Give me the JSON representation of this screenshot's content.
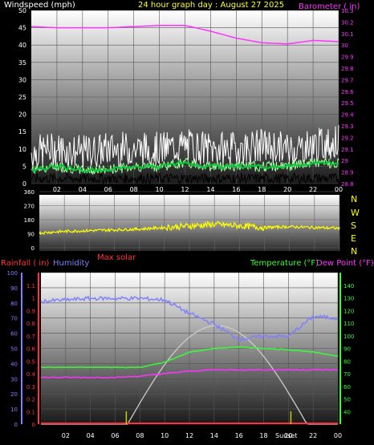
{
  "colors": {
    "bg": "#000000",
    "wind_label": "#ffffff",
    "title": "#ffff33",
    "barometer": "#ff33ff",
    "wind_avg": "#00cc33",
    "wind_gust": "#ffffff",
    "wind_dir": "#ffff00",
    "rain": "#ff3333",
    "humidity": "#8080ff",
    "temperature": "#33ff33",
    "dewpoint": "#ff33ff",
    "solar": "#cccccc",
    "sun_mark": "#cccc00"
  },
  "header": {
    "windspeed_label": "Windspeed (mph)",
    "title": "24 hour graph day : August 27 2025",
    "barometer_label": "Barometer ( in)"
  },
  "x_ticks": [
    "02",
    "04",
    "06",
    "08",
    "10",
    "12",
    "14",
    "16",
    "18",
    "20",
    "22",
    "00"
  ],
  "wind_dir_letters": [
    "N",
    "W",
    "S",
    "E",
    "N"
  ],
  "bottom_labels": {
    "rainfall": "Rainfall ( in)",
    "humidity": "Humidity",
    "max_solar": "Max solar",
    "temperature": "Temperature (°F)",
    "dewpoint": "Dew Point (°F)",
    "sunset": "Sunset"
  },
  "chart_data": [
    {
      "type": "line",
      "title": "24 hour graph day : August 27 2025",
      "x_hours": [
        0,
        2,
        4,
        6,
        8,
        10,
        12,
        14,
        16,
        18,
        20,
        22,
        24
      ],
      "left_axis": {
        "label": "Windspeed (mph)",
        "ylim": [
          0,
          50
        ],
        "ticks": [
          0,
          5,
          10,
          15,
          20,
          25,
          30,
          35,
          40,
          45,
          50
        ]
      },
      "right_axis": {
        "label": "Barometer ( in)",
        "ylim": [
          28.8,
          30.3
        ],
        "ticks": [
          "28.8",
          "28.9",
          "29",
          "29.1",
          "29.2",
          "29.3",
          "29.4",
          "29.5",
          "29.6",
          "29.7",
          "29.8",
          "29.9",
          "30",
          "30.1",
          "30.2",
          "30.3"
        ]
      },
      "series": [
        {
          "name": "Barometer",
          "axis": "right",
          "values": [
            30.16,
            30.15,
            30.15,
            30.15,
            30.16,
            30.17,
            30.17,
            30.12,
            30.06,
            30.02,
            30.01,
            30.04,
            30.03
          ]
        },
        {
          "name": "Wind gust",
          "axis": "left",
          "values": [
            9,
            10,
            9,
            10,
            10,
            10,
            11,
            10,
            10,
            11,
            10,
            11,
            12
          ]
        },
        {
          "name": "Wind average",
          "axis": "left",
          "values": [
            4,
            5,
            4,
            4,
            5,
            5,
            6,
            5,
            5,
            5,
            5,
            6,
            6
          ]
        }
      ],
      "grid": true
    },
    {
      "type": "scatter",
      "left_axis": {
        "ylim": [
          0,
          360
        ],
        "ticks": [
          0,
          90,
          180,
          270,
          360
        ]
      },
      "right_labels": [
        "N",
        "W",
        "S",
        "E",
        "N"
      ],
      "series": [
        {
          "name": "Wind direction",
          "values": [
            95,
            105,
            110,
            115,
            120,
            130,
            140,
            150,
            140,
            130,
            135,
            130,
            125
          ]
        }
      ],
      "grid": true
    },
    {
      "type": "line",
      "x_hours": [
        0,
        2,
        4,
        6,
        8,
        10,
        12,
        14,
        16,
        18,
        20,
        22,
        24
      ],
      "humidity_axis": {
        "label": "Humidity",
        "ylim": [
          0,
          100
        ],
        "ticks": [
          0,
          10,
          20,
          30,
          40,
          50,
          60,
          70,
          80,
          90,
          100
        ]
      },
      "rain_axis": {
        "label": "Rainfall ( in)",
        "ylim": [
          0,
          1.2
        ],
        "ticks": [
          "0",
          "0.1",
          "0.2",
          "0.3",
          "0.4",
          "0.5",
          "0.6",
          "0.7",
          "0.8",
          "0.9",
          "1",
          "1.1"
        ]
      },
      "temp_axis": {
        "label": "Temperature (°F)",
        "ylim": [
          30,
          150
        ],
        "ticks": [
          40,
          50,
          60,
          70,
          80,
          90,
          100,
          110,
          120,
          130,
          140
        ]
      },
      "series": [
        {
          "name": "Humidity",
          "axis": "humidity",
          "values": [
            81,
            82,
            83,
            83,
            83,
            82,
            73,
            66,
            56,
            58,
            58,
            71,
            70
          ]
        },
        {
          "name": "Temperature",
          "axis": "temp",
          "values": [
            75,
            75,
            75,
            75,
            75,
            79,
            87,
            90,
            91,
            90,
            89,
            87,
            84
          ]
        },
        {
          "name": "Dew Point",
          "axis": "temp",
          "values": [
            67,
            67,
            67,
            67,
            68,
            70,
            72,
            73,
            73,
            73,
            73,
            73,
            73
          ]
        },
        {
          "name": "Max solar",
          "axis": "temp",
          "values": [
            30,
            30,
            30,
            30,
            33,
            58,
            88,
            108,
            90,
            56,
            34,
            30,
            30
          ]
        },
        {
          "name": "Rainfall",
          "axis": "rain",
          "values": [
            0,
            0,
            0,
            0,
            0,
            0,
            0,
            0,
            0,
            0,
            0,
            0,
            0
          ]
        }
      ],
      "sunrise_hour": 6.9,
      "sunset_hour": 20.2,
      "grid": true
    }
  ]
}
